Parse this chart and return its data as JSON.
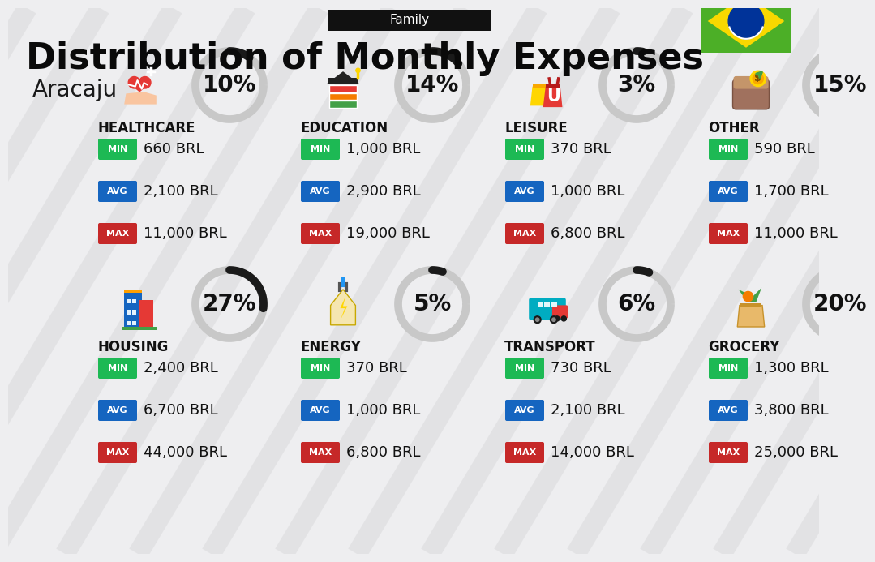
{
  "title": "Distribution of Monthly Expenses",
  "subtitle": "Family",
  "city": "Aracaju",
  "bg_color": "#eeeef0",
  "categories": [
    {
      "name": "HOUSING",
      "pct": 27,
      "min": "2,400 BRL",
      "avg": "6,700 BRL",
      "max": "44,000 BRL",
      "row": 0,
      "col": 0
    },
    {
      "name": "ENERGY",
      "pct": 5,
      "min": "370 BRL",
      "avg": "1,000 BRL",
      "max": "6,800 BRL",
      "row": 0,
      "col": 1
    },
    {
      "name": "TRANSPORT",
      "pct": 6,
      "min": "730 BRL",
      "avg": "2,100 BRL",
      "max": "14,000 BRL",
      "row": 0,
      "col": 2
    },
    {
      "name": "GROCERY",
      "pct": 20,
      "min": "1,300 BRL",
      "avg": "3,800 BRL",
      "max": "25,000 BRL",
      "row": 0,
      "col": 3
    },
    {
      "name": "HEALTHCARE",
      "pct": 10,
      "min": "660 BRL",
      "avg": "2,100 BRL",
      "max": "11,000 BRL",
      "row": 1,
      "col": 0
    },
    {
      "name": "EDUCATION",
      "pct": 14,
      "min": "1,000 BRL",
      "avg": "2,900 BRL",
      "max": "19,000 BRL",
      "row": 1,
      "col": 1
    },
    {
      "name": "LEISURE",
      "pct": 3,
      "min": "370 BRL",
      "avg": "1,000 BRL",
      "max": "6,800 BRL",
      "row": 1,
      "col": 2
    },
    {
      "name": "OTHER",
      "pct": 15,
      "min": "590 BRL",
      "avg": "1,700 BRL",
      "max": "11,000 BRL",
      "row": 1,
      "col": 3
    }
  ],
  "min_color": "#1db954",
  "avg_color": "#1565c0",
  "max_color": "#c62828",
  "arc_color": "#1a1a1a",
  "arc_bg_color": "#c8c8c8",
  "stripe_color": "#d8d8da",
  "label_color": "#ffffff",
  "title_fontsize": 32,
  "subtitle_fontsize": 11,
  "city_fontsize": 20,
  "cat_fontsize": 12,
  "val_fontsize": 13,
  "badge_fontsize": 8,
  "pct_fontsize": 20
}
